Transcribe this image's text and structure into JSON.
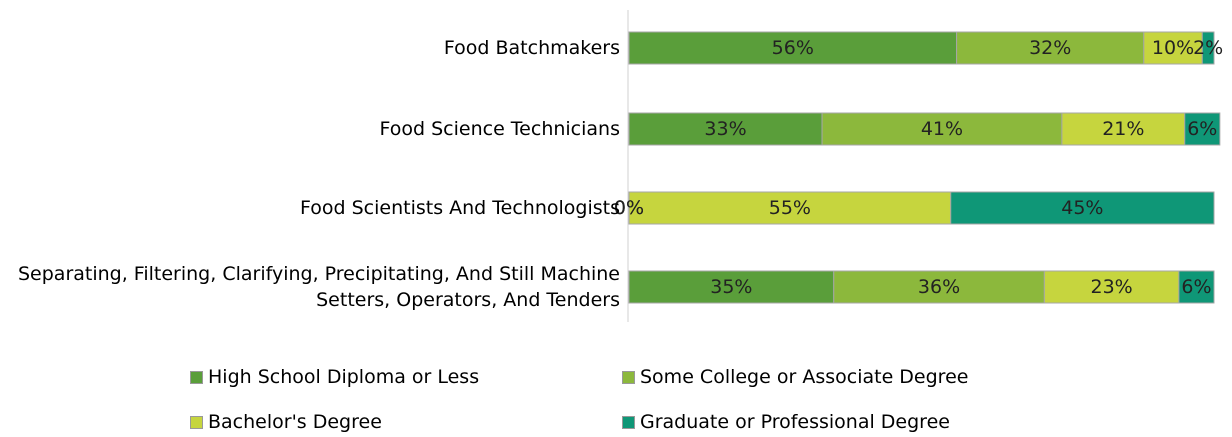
{
  "chart_data": {
    "type": "stacked_bar",
    "categories": [
      "Food Batchmakers",
      "Food Science Technicians",
      "Food Scientists And Technologists",
      "Separating, Filtering, Clarifying, Precipitating, And Still Machine Setters, Operators, And Tenders"
    ],
    "series": [
      {
        "name": "High School Diploma or Less",
        "color": "#5a9e3a",
        "values": [
          56,
          33,
          0,
          35
        ],
        "value_labels": [
          "56%",
          "33%",
          "0%",
          "35%"
        ]
      },
      {
        "name": "Some College or Associate Degree",
        "color": "#8cb83c",
        "values": [
          32,
          41,
          0,
          36
        ],
        "value_labels": [
          "32%",
          "41%",
          "0%",
          "36%"
        ]
      },
      {
        "name": "Bachelor's Degree",
        "color": "#c6d53e",
        "values": [
          10,
          21,
          55,
          23
        ],
        "value_labels": [
          "10%",
          "21%",
          "55%",
          "23%"
        ]
      },
      {
        "name": "Graduate or Professional Degree",
        "color": "#0f9777",
        "values": [
          2,
          6,
          45,
          6
        ],
        "value_labels": [
          "2%",
          "6%",
          "45%",
          "6%"
        ]
      }
    ],
    "xlim": [
      0,
      100
    ]
  }
}
